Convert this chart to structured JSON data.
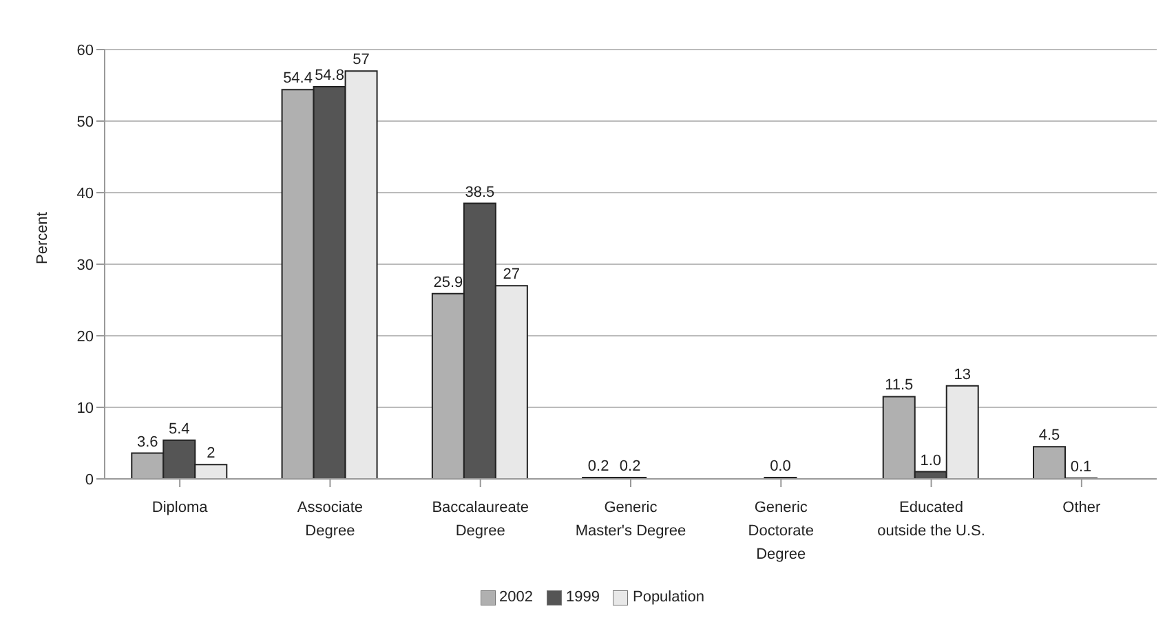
{
  "chart_data": {
    "type": "bar",
    "ylabel": "Percent",
    "categories": [
      "Diploma",
      "Associate\nDegree",
      "Baccalaureate\nDegree",
      "Generic\nMaster's Degree",
      "Generic\nDoctorate\nDegree",
      "Educated\noutside the U.S.",
      "Other"
    ],
    "series": [
      {
        "name": "2002",
        "color": "#b0b0b0",
        "values": [
          3.6,
          54.4,
          25.9,
          0.2,
          null,
          11.5,
          4.5
        ],
        "value_labels": [
          "3.6",
          "54.4",
          "25.9",
          "0.2",
          null,
          "11.5",
          "4.5"
        ]
      },
      {
        "name": "1999",
        "color": "#555555",
        "values": [
          5.4,
          54.8,
          38.5,
          0.2,
          0.0,
          1.0,
          0.1
        ],
        "value_labels": [
          "5.4",
          "54.8",
          "38.5",
          "0.2",
          "0.0",
          "1.0",
          "0.1"
        ]
      },
      {
        "name": "Population",
        "color": "#e8e8e8",
        "values": [
          2,
          57,
          27,
          null,
          null,
          13,
          null
        ],
        "value_labels": [
          "2",
          "57",
          "27",
          null,
          null,
          "13",
          null
        ]
      }
    ],
    "ylim": [
      0,
      60
    ],
    "yticks": [
      0,
      10,
      20,
      30,
      40,
      50,
      60
    ],
    "grid": "y",
    "legend": "bottom"
  }
}
